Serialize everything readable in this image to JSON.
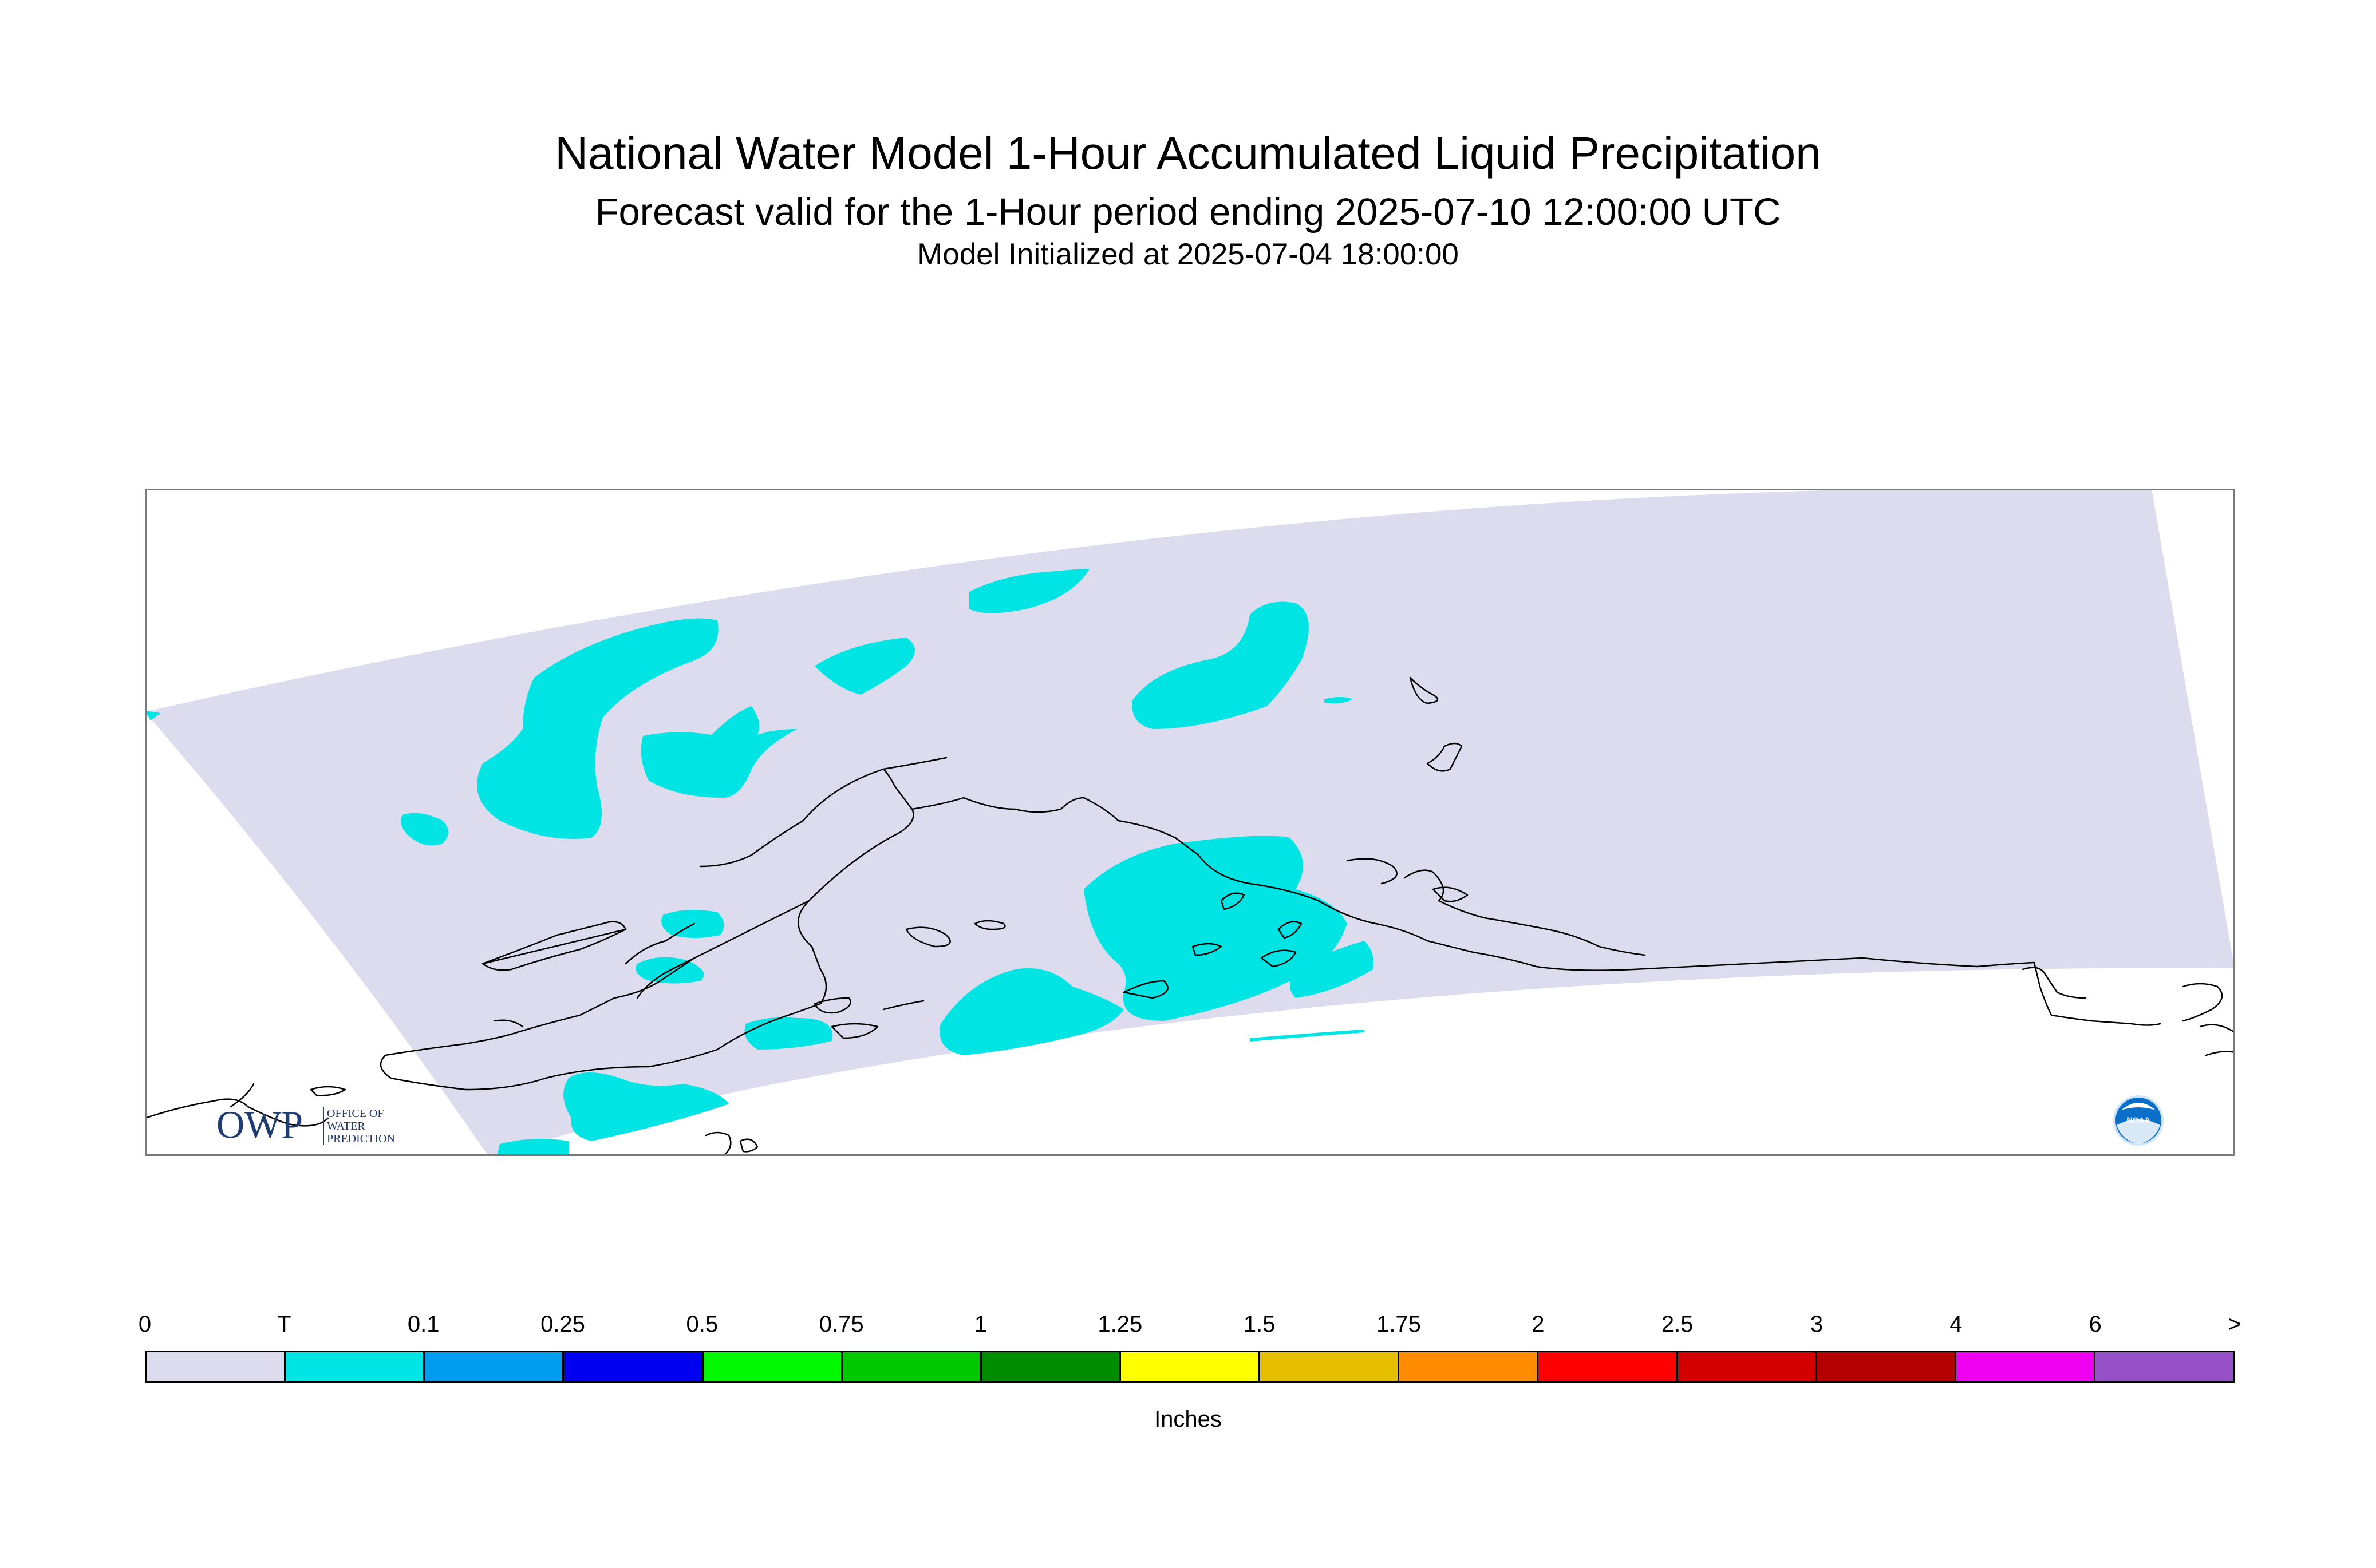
{
  "header": {
    "title": "National Water Model 1-Hour Accumulated Liquid Precipitation",
    "subtitle": "Forecast valid for the 1-Hour period ending 2025-07-10 12:00:00 UTC",
    "initialized": "Model Initialized at 2025-07-04 18:00:00"
  },
  "map": {
    "domain_color": "#dcdcee",
    "trace_color": "#00e4e4",
    "coastline_color": "#000000",
    "logos": {
      "owp": {
        "mark": "OWP",
        "lines": [
          "OFFICE OF",
          "WATER",
          "PREDICTION"
        ],
        "color": "#1f3b73"
      },
      "noaa": {
        "mark": "NOAA",
        "color": "#0a6fc9"
      }
    }
  },
  "legend": {
    "labels": [
      "0",
      "T",
      "0.1",
      "0.25",
      "0.5",
      "0.75",
      "1",
      "1.25",
      "1.5",
      "1.75",
      "2",
      "2.5",
      "3",
      "4",
      "6",
      ">"
    ],
    "colors": [
      "#dcdcee",
      "#00e4e4",
      "#009cf0",
      "#0000f0",
      "#00f800",
      "#00c800",
      "#008c00",
      "#ffff00",
      "#e6be00",
      "#ff8c00",
      "#ff0000",
      "#d20000",
      "#b40000",
      "#f000f0",
      "#9650c8"
    ],
    "units": "Inches"
  }
}
